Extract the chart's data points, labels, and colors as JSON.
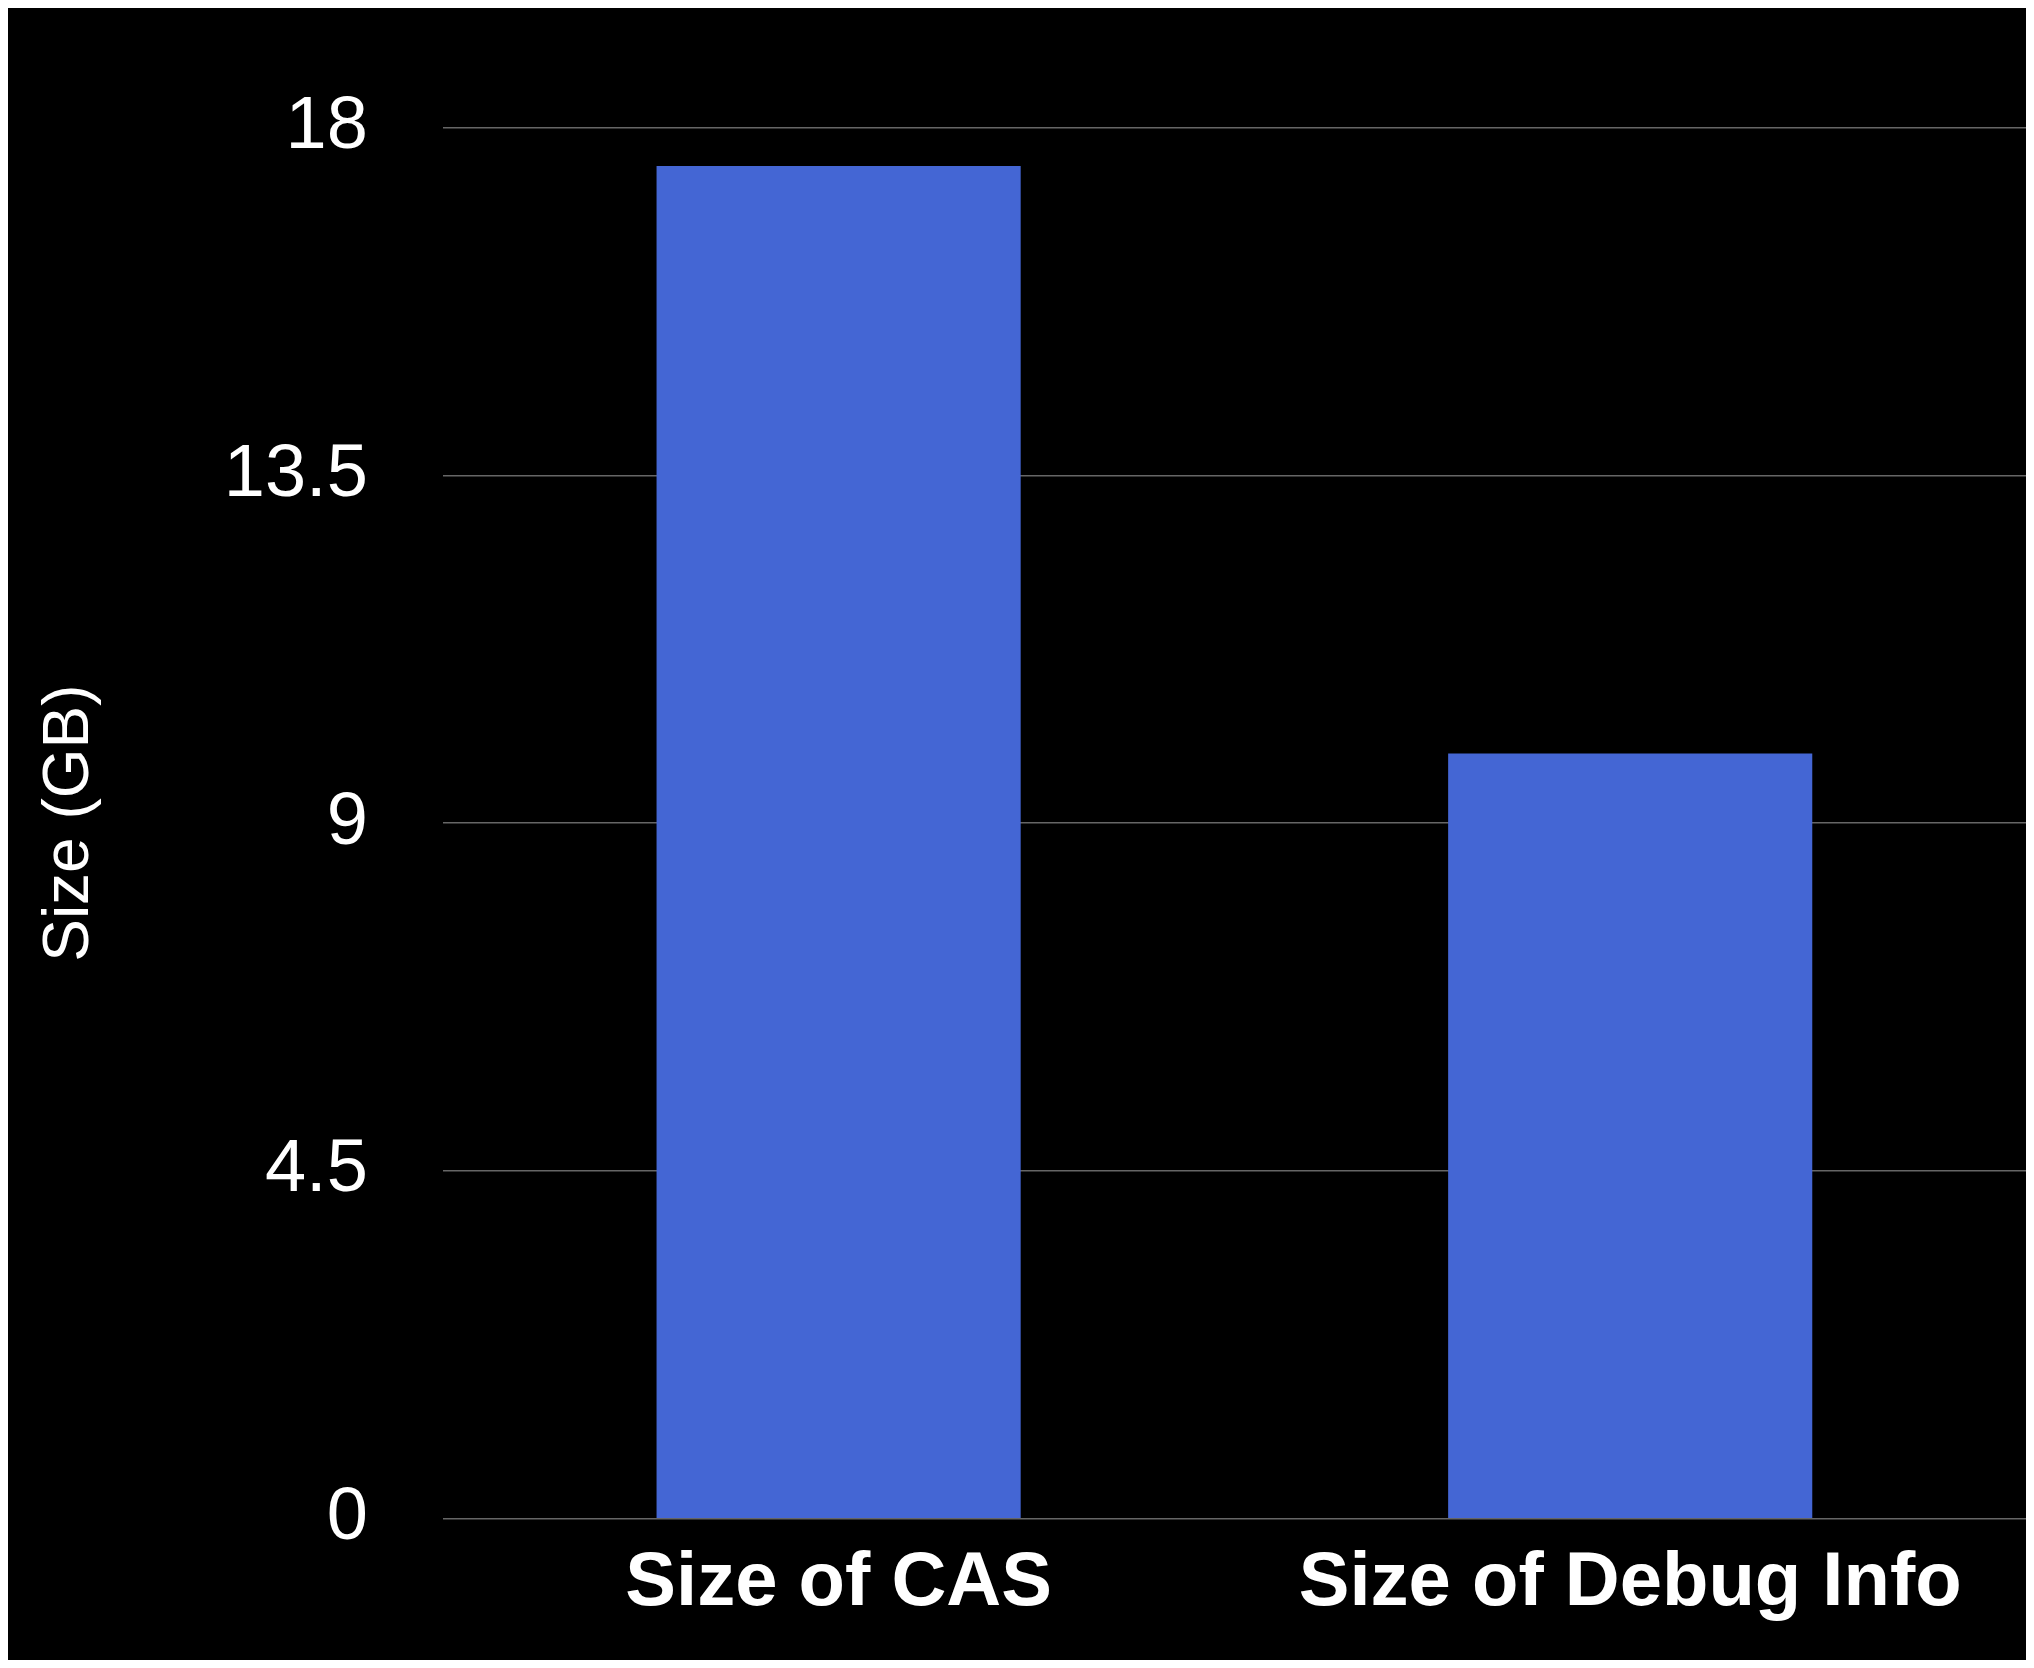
{
  "chart_data": {
    "type": "bar",
    "ylabel": "Size (GB)",
    "categories": [
      "Size of CAS",
      "Size of Debug Info"
    ],
    "values": [
      17.5,
      9.9
    ],
    "color": "#4466d4",
    "ylim": [
      0,
      18
    ],
    "yticks": [
      0,
      4.5,
      9,
      13.5,
      18
    ],
    "grid": "y",
    "legend": false
  }
}
